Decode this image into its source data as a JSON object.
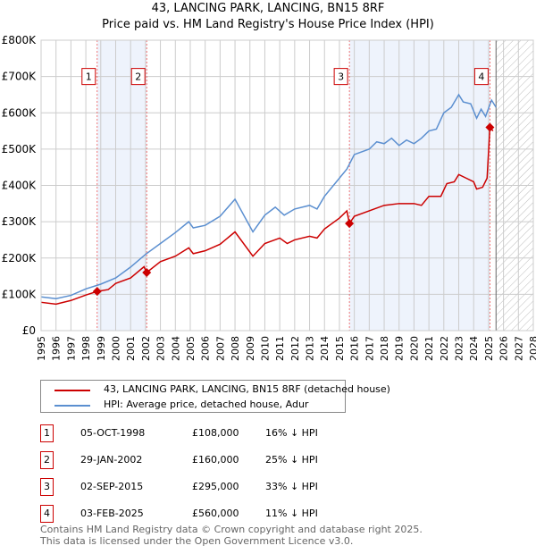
{
  "title": "43, LANCING PARK, LANCING, BN15 8RF",
  "subtitle": "Price paid vs. HM Land Registry's House Price Index (HPI)",
  "chart_data": {
    "type": "line",
    "xlim": [
      1995,
      2028
    ],
    "ylim": [
      0,
      800000
    ],
    "yticks": [
      0,
      100000,
      200000,
      300000,
      400000,
      500000,
      600000,
      700000,
      800000
    ],
    "ytick_labels": [
      "£0",
      "£100K",
      "£200K",
      "£300K",
      "£400K",
      "£500K",
      "£600K",
      "£700K",
      "£800K"
    ],
    "xticks": [
      1995,
      1996,
      1997,
      1998,
      1999,
      2000,
      2001,
      2002,
      2003,
      2004,
      2005,
      2006,
      2007,
      2008,
      2009,
      2010,
      2011,
      2012,
      2013,
      2014,
      2015,
      2016,
      2017,
      2018,
      2019,
      2020,
      2021,
      2022,
      2023,
      2024,
      2025,
      2026,
      2027,
      2028
    ],
    "grid": true,
    "data_end": 2025.5,
    "shaded_ranges": [
      [
        1998.76,
        2002.08
      ],
      [
        2015.67,
        2025.09
      ]
    ],
    "series": [
      {
        "name": "43, LANCING PARK, LANCING, BN15 8RF (detached house)",
        "color": "#cc0000",
        "x": [
          1995,
          1996,
          1997,
          1998,
          1998.76,
          1999.5,
          2000,
          2001,
          2001.9,
          2002.08,
          2003,
          2004,
          2004.9,
          2005.2,
          2006,
          2007,
          2008,
          2009.2,
          2010,
          2011,
          2011.5,
          2012,
          2013,
          2013.5,
          2014,
          2015,
          2015.5,
          2015.67,
          2016,
          2017,
          2018,
          2019,
          2020,
          2020.5,
          2021,
          2021.8,
          2022.2,
          2022.7,
          2023,
          2023.5,
          2024,
          2024.2,
          2024.6,
          2024.9,
          2025.09,
          2025.3
        ],
        "y": [
          78000,
          73000,
          83000,
          98000,
          108000,
          113000,
          130000,
          145000,
          176000,
          160000,
          190000,
          205000,
          228000,
          212000,
          220000,
          238000,
          272000,
          205000,
          240000,
          255000,
          240000,
          250000,
          260000,
          255000,
          280000,
          310000,
          330000,
          295000,
          315000,
          330000,
          345000,
          350000,
          350000,
          345000,
          370000,
          370000,
          405000,
          410000,
          430000,
          420000,
          410000,
          390000,
          395000,
          420000,
          560000,
          550000
        ]
      },
      {
        "name": "HPI: Average price, detached house, Adur",
        "color": "#5b8fd0",
        "x": [
          1995,
          1996,
          1997,
          1998,
          1999,
          2000,
          2001,
          2002,
          2003,
          2004,
          2004.9,
          2005.2,
          2006,
          2007,
          2008,
          2009.2,
          2010,
          2010.7,
          2011.3,
          2012,
          2013,
          2013.5,
          2014,
          2015,
          2015.5,
          2016,
          2017,
          2017.5,
          2018,
          2018.5,
          2019,
          2019.5,
          2020,
          2020.5,
          2021,
          2021.5,
          2022,
          2022.5,
          2023,
          2023.3,
          2023.8,
          2024.2,
          2024.5,
          2024.8,
          2025.2,
          2025.5
        ],
        "y": [
          93000,
          88000,
          97000,
          115000,
          128000,
          145000,
          175000,
          210000,
          240000,
          270000,
          300000,
          283000,
          290000,
          315000,
          362000,
          272000,
          318000,
          340000,
          318000,
          335000,
          345000,
          335000,
          370000,
          420000,
          445000,
          485000,
          500000,
          520000,
          515000,
          530000,
          510000,
          525000,
          515000,
          530000,
          550000,
          555000,
          600000,
          615000,
          650000,
          630000,
          625000,
          585000,
          610000,
          590000,
          635000,
          615000
        ]
      }
    ],
    "transactions": [
      {
        "label": "1",
        "x": 1998.76,
        "price": 108000,
        "date": "05-OCT-1998",
        "price_text": "£108,000",
        "hpi": "16% ↓ HPI"
      },
      {
        "label": "2",
        "x": 2002.08,
        "price": 160000,
        "date": "29-JAN-2002",
        "price_text": "£160,000",
        "hpi": "25% ↓ HPI"
      },
      {
        "label": "3",
        "x": 2015.67,
        "price": 295000,
        "date": "02-SEP-2015",
        "price_text": "£295,000",
        "hpi": "33% ↓ HPI"
      },
      {
        "label": "4",
        "x": 2025.09,
        "price": 560000,
        "date": "03-FEB-2025",
        "price_text": "£560,000",
        "hpi": "11% ↓ HPI"
      }
    ]
  },
  "footer": {
    "line1": "Contains HM Land Registry data © Crown copyright and database right 2025.",
    "line2": "This data is licensed under the Open Government Licence v3.0."
  }
}
